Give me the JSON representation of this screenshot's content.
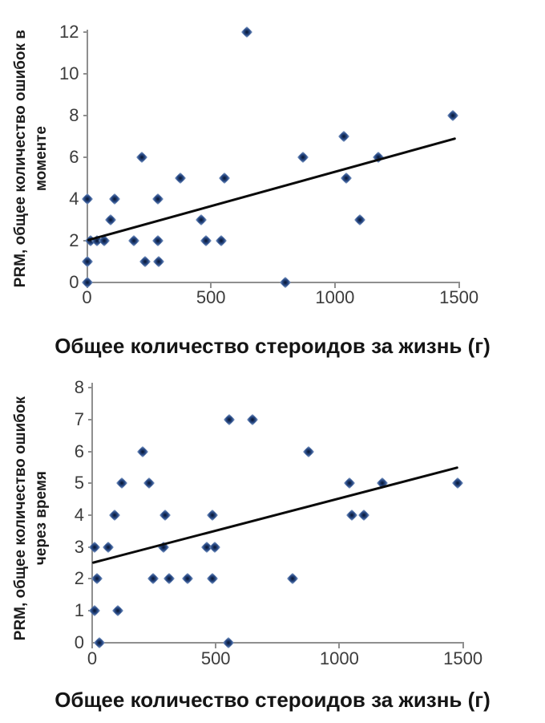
{
  "figure": {
    "background": "#ffffff",
    "axis_color": "#8f8f8f",
    "tick_label_color": "#3c3c3c",
    "title_color": "#151515",
    "trendline_color": "#0a0a0a",
    "marker_core_color": "#0b1d40",
    "marker_mid_color": "#2c4e8a",
    "marker_halo_color": "#8fa9d0"
  },
  "chart_data": [
    {
      "type": "scatter",
      "xlabel": "Общее количество стероидов за жизнь (г)",
      "ylabel_lines": [
        "PRM, общее количество ошибок в",
        "моменте"
      ],
      "xlim": [
        0,
        1500
      ],
      "ylim": [
        0,
        12
      ],
      "xticks": [
        0,
        500,
        1000,
        1500
      ],
      "yticks": [
        0,
        2,
        4,
        6,
        8,
        10,
        12
      ],
      "grid": false,
      "legend": "none",
      "points": [
        [
          0,
          0
        ],
        [
          0,
          1
        ],
        [
          15,
          2
        ],
        [
          40,
          2
        ],
        [
          70,
          2
        ],
        [
          0,
          4
        ],
        [
          95,
          3
        ],
        [
          110,
          4
        ],
        [
          190,
          2
        ],
        [
          220,
          6
        ],
        [
          235,
          1
        ],
        [
          285,
          2
        ],
        [
          285,
          4
        ],
        [
          290,
          1
        ],
        [
          375,
          5
        ],
        [
          460,
          3
        ],
        [
          480,
          2
        ],
        [
          540,
          2
        ],
        [
          555,
          5
        ],
        [
          645,
          12
        ],
        [
          800,
          0
        ],
        [
          870,
          6
        ],
        [
          1035,
          7
        ],
        [
          1045,
          5
        ],
        [
          1100,
          3
        ],
        [
          1175,
          6
        ],
        [
          1475,
          8
        ]
      ],
      "trendline": {
        "x1": 0,
        "y1": 2.0,
        "x2": 1485,
        "y2": 6.9
      }
    },
    {
      "type": "scatter",
      "xlabel": "Общее количество стероидов за жизнь (г)",
      "ylabel_lines": [
        "PRM, общее количество ошибок",
        "через время"
      ],
      "xlim": [
        0,
        1500
      ],
      "ylim": [
        0,
        8
      ],
      "xticks": [
        0,
        500,
        1000,
        1500
      ],
      "yticks": [
        0,
        1,
        2,
        3,
        4,
        5,
        6,
        7,
        8
      ],
      "grid": false,
      "legend": "none",
      "points": [
        [
          30,
          0
        ],
        [
          550,
          0
        ],
        [
          10,
          1
        ],
        [
          105,
          1
        ],
        [
          20,
          2
        ],
        [
          245,
          2
        ],
        [
          310,
          2
        ],
        [
          385,
          2
        ],
        [
          485,
          2
        ],
        [
          810,
          2
        ],
        [
          10,
          3
        ],
        [
          65,
          3
        ],
        [
          290,
          3
        ],
        [
          465,
          3
        ],
        [
          495,
          3
        ],
        [
          90,
          4
        ],
        [
          295,
          4
        ],
        [
          485,
          4
        ],
        [
          1050,
          4
        ],
        [
          1100,
          4
        ],
        [
          120,
          5
        ],
        [
          230,
          5
        ],
        [
          1040,
          5
        ],
        [
          1175,
          5
        ],
        [
          1480,
          5
        ],
        [
          205,
          6
        ],
        [
          875,
          6
        ],
        [
          555,
          7
        ],
        [
          650,
          7
        ]
      ],
      "trendline": {
        "x1": 0,
        "y1": 2.5,
        "x2": 1480,
        "y2": 5.5
      }
    }
  ]
}
